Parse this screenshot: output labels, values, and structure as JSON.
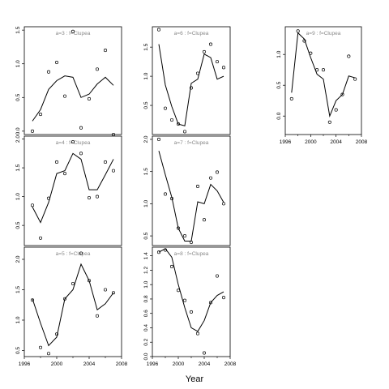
{
  "figure": {
    "xlabel": "Year",
    "panel_label_template": "a={a} : f=Clupea"
  },
  "chart_data": [
    {
      "type": "scatter",
      "panel": "a=3",
      "title": "a=3 : f=Clupea",
      "xlabel": "Year",
      "xlim": [
        1996,
        2008
      ],
      "ylim": [
        -0.05,
        1.55
      ],
      "xticks": [
        1996,
        2000,
        2004,
        2008
      ],
      "yticks": [
        0.0,
        0.5,
        1.0,
        1.5
      ],
      "x": [
        1997,
        1998,
        1999,
        2000,
        2001,
        2002,
        2003,
        2004,
        2005,
        2006,
        2007
      ],
      "observed": [
        0.0,
        0.25,
        0.88,
        1.02,
        0.52,
        1.48,
        0.05,
        0.48,
        0.92,
        1.2,
        -0.05
      ],
      "fitted": [
        0.15,
        0.32,
        0.62,
        0.75,
        0.82,
        0.8,
        0.5,
        0.55,
        0.7,
        0.8,
        0.68
      ]
    },
    {
      "type": "scatter",
      "panel": "a=4",
      "title": "a=4 : f=Clupea",
      "xlabel": "Year",
      "xlim": [
        1996,
        2008
      ],
      "ylim": [
        0.15,
        2.05
      ],
      "xticks": [
        1996,
        2000,
        2004,
        2008
      ],
      "yticks": [
        0.5,
        1.0,
        1.5,
        2.0
      ],
      "x": [
        1997,
        1998,
        1999,
        2000,
        2001,
        2002,
        2003,
        2004,
        2005,
        2006,
        2007
      ],
      "observed": [
        0.85,
        0.28,
        0.97,
        1.6,
        1.4,
        1.95,
        1.75,
        0.98,
        1.0,
        1.6,
        1.45
      ],
      "fitted": [
        0.82,
        0.55,
        0.9,
        1.4,
        1.45,
        1.75,
        1.65,
        1.12,
        1.12,
        1.38,
        1.65
      ]
    },
    {
      "type": "scatter",
      "panel": "a=5",
      "title": "a=5 : f=Clupea",
      "xlabel": "Year",
      "xlim": [
        1996,
        2008
      ],
      "ylim": [
        0.4,
        2.2
      ],
      "xticks": [
        1996,
        2000,
        2004,
        2008
      ],
      "yticks": [
        0.5,
        1.0,
        1.5,
        2.0
      ],
      "x": [
        1997,
        1998,
        1999,
        2000,
        2001,
        2002,
        2003,
        2004,
        2005,
        2006,
        2007
      ],
      "observed": [
        1.33,
        0.55,
        0.45,
        0.77,
        1.35,
        1.6,
        2.1,
        1.65,
        1.07,
        1.5,
        1.45
      ],
      "fitted": [
        1.35,
        0.95,
        0.58,
        0.72,
        1.35,
        1.5,
        1.92,
        1.65,
        1.17,
        1.27,
        1.45
      ]
    },
    {
      "type": "scatter",
      "panel": "a=6",
      "title": "a=6 : f=Clupea",
      "xlabel": "Year",
      "xlim": [
        1996,
        2008
      ],
      "ylim": [
        0.0,
        1.85
      ],
      "xticks": [
        1996,
        2000,
        2004,
        2008
      ],
      "yticks": [
        0.5,
        1.0,
        1.5
      ],
      "x": [
        1997,
        1998,
        1999,
        2000,
        2001,
        2002,
        2003,
        2004,
        2005,
        2006,
        2007
      ],
      "observed": [
        1.8,
        0.45,
        0.25,
        0.18,
        0.05,
        0.8,
        1.05,
        1.42,
        1.55,
        1.25,
        1.15
      ],
      "fitted": [
        1.55,
        0.85,
        0.48,
        0.18,
        0.15,
        0.88,
        0.95,
        1.38,
        1.32,
        0.95,
        1.0
      ]
    },
    {
      "type": "scatter",
      "panel": "a=7",
      "title": "a=7 : f=Clupea",
      "xlabel": "Year",
      "xlim": [
        1996,
        2008
      ],
      "ylim": [
        0.35,
        2.05
      ],
      "xticks": [
        1996,
        2000,
        2004,
        2008
      ],
      "yticks": [
        0.5,
        1.0,
        1.5,
        2.0
      ],
      "x": [
        1997,
        1998,
        1999,
        2000,
        2001,
        2002,
        2003,
        2004,
        2005,
        2006,
        2007
      ],
      "observed": [
        2.0,
        1.15,
        1.08,
        0.62,
        0.5,
        0.4,
        1.27,
        0.75,
        1.4,
        1.49,
        1.0
      ],
      "fitted": [
        1.82,
        1.45,
        1.1,
        0.62,
        0.42,
        0.42,
        1.03,
        1.0,
        1.3,
        1.2,
        1.02
      ]
    },
    {
      "type": "scatter",
      "panel": "a=8",
      "title": "a=8 : f=Clupea",
      "xlabel": "Year",
      "xlim": [
        1996,
        2008
      ],
      "ylim": [
        0.0,
        1.52
      ],
      "xticks": [
        1996,
        2000,
        2004,
        2008
      ],
      "yticks": [
        0.0,
        0.2,
        0.4,
        0.6,
        0.8,
        1.0,
        1.2,
        1.4
      ],
      "x": [
        1997,
        1998,
        1999,
        2000,
        2001,
        2002,
        2003,
        2004,
        2005,
        2006,
        2007
      ],
      "observed": [
        1.45,
        1.48,
        1.25,
        0.92,
        0.78,
        0.62,
        0.32,
        0.05,
        0.75,
        1.12,
        0.82
      ],
      "fitted": [
        1.45,
        1.5,
        1.38,
        1.0,
        0.68,
        0.4,
        0.35,
        0.5,
        0.75,
        0.85,
        0.9
      ]
    },
    {
      "type": "scatter",
      "panel": "a=9",
      "title": "a=9 : f=Clupea",
      "xlabel": "Year",
      "xlim": [
        1996,
        2008
      ],
      "ylim": [
        -0.3,
        1.45
      ],
      "xticks": [
        1996,
        2000,
        2004,
        2008
      ],
      "yticks": [
        0.0,
        0.5,
        1.0
      ],
      "x": [
        1997,
        1998,
        1999,
        2000,
        2001,
        2002,
        2003,
        2004,
        2005,
        2006,
        2007
      ],
      "observed": [
        0.28,
        1.38,
        1.22,
        1.02,
        0.75,
        0.75,
        -0.1,
        0.1,
        0.35,
        0.97,
        0.6
      ],
      "fitted": [
        0.38,
        1.35,
        1.25,
        0.95,
        0.68,
        0.6,
        0.0,
        0.25,
        0.35,
        0.65,
        0.62
      ]
    }
  ]
}
